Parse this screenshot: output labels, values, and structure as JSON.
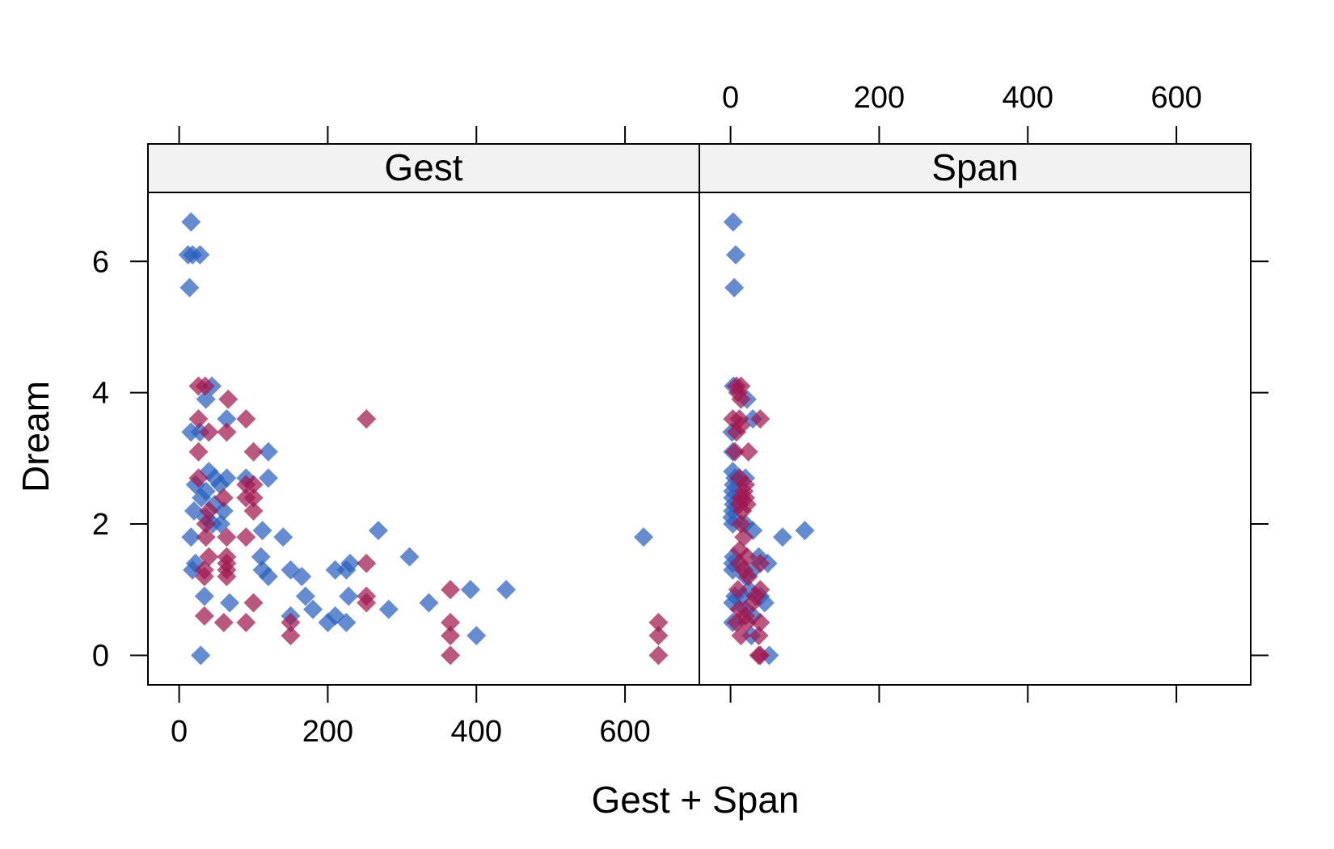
{
  "chart_data": {
    "type": "scatter",
    "xlabel": "Gest + Span",
    "ylabel": "Dream",
    "xlim": [
      -42,
      700
    ],
    "ylim": [
      -0.45,
      7.05
    ],
    "x_ticks": [
      0,
      200,
      400,
      600
    ],
    "y_ticks": [
      0,
      2,
      4,
      6
    ],
    "grid": false,
    "marker": "diamond",
    "colors": {
      "group_a": "#2a5fbf",
      "group_b": "#a0174f",
      "strip_bg": "#f2f2f2",
      "frame": "#000000"
    },
    "panels": [
      {
        "strip_label": "Gest",
        "series": [
          {
            "color_key": "group_a",
            "points": [
              [
                16,
                6.6
              ],
              [
                12,
                6.1
              ],
              [
                18,
                6.1
              ],
              [
                28,
                6.1
              ],
              [
                14,
                5.6
              ],
              [
                44,
                4.1
              ],
              [
                36,
                3.9
              ],
              [
                64,
                3.6
              ],
              [
                16,
                3.4
              ],
              [
                28,
                3.4
              ],
              [
                120,
                3.1
              ],
              [
                22,
                2.6
              ],
              [
                36,
                2.5
              ],
              [
                40,
                2.8
              ],
              [
                48,
                2.7
              ],
              [
                55,
                2.6
              ],
              [
                64,
                2.7
              ],
              [
                90,
                2.7
              ],
              [
                120,
                2.7
              ],
              [
                30,
                2.4
              ],
              [
                48,
                2.3
              ],
              [
                60,
                2.2
              ],
              [
                20,
                2.2
              ],
              [
                45,
                2.0
              ],
              [
                56,
                2.0
              ],
              [
                36,
                2.1
              ],
              [
                112,
                1.9
              ],
              [
                268,
                1.9
              ],
              [
                16,
                1.8
              ],
              [
                140,
                1.8
              ],
              [
                625,
                1.8
              ],
              [
                310,
                1.5
              ],
              [
                22,
                1.4
              ],
              [
                110,
                1.5
              ],
              [
                230,
                1.4
              ],
              [
                18,
                1.3
              ],
              [
                112,
                1.3
              ],
              [
                150,
                1.3
              ],
              [
                210,
                1.3
              ],
              [
                225,
                1.3
              ],
              [
                120,
                1.2
              ],
              [
                165,
                1.2
              ],
              [
                170,
                0.9
              ],
              [
                228,
                0.9
              ],
              [
                34,
                0.9
              ],
              [
                68,
                0.8
              ],
              [
                180,
                0.7
              ],
              [
                282,
                0.7
              ],
              [
                336,
                0.8
              ],
              [
                392,
                1.0
              ],
              [
                440,
                1.0
              ],
              [
                200,
                0.5
              ],
              [
                210,
                0.6
              ],
              [
                225,
                0.5
              ],
              [
                150,
                0.6
              ],
              [
                400,
                0.3
              ],
              [
                29,
                0.0
              ]
            ]
          },
          {
            "color_key": "group_b",
            "points": [
              [
                26,
                4.1
              ],
              [
                35,
                4.1
              ],
              [
                66,
                3.9
              ],
              [
                26,
                3.6
              ],
              [
                90,
                3.6
              ],
              [
                252,
                3.6
              ],
              [
                40,
                3.4
              ],
              [
                64,
                3.4
              ],
              [
                26,
                3.1
              ],
              [
                100,
                3.1
              ],
              [
                26,
                2.7
              ],
              [
                90,
                2.6
              ],
              [
                100,
                2.6
              ],
              [
                100,
                2.4
              ],
              [
                60,
                2.4
              ],
              [
                90,
                2.4
              ],
              [
                40,
                2.2
              ],
              [
                100,
                2.2
              ],
              [
                36,
                2.0
              ],
              [
                36,
                1.8
              ],
              [
                64,
                1.8
              ],
              [
                90,
                1.8
              ],
              [
                64,
                1.5
              ],
              [
                40,
                1.5
              ],
              [
                64,
                1.4
              ],
              [
                34,
                1.3
              ],
              [
                64,
                1.3
              ],
              [
                34,
                1.2
              ],
              [
                64,
                1.2
              ],
              [
                252,
                1.4
              ],
              [
                365,
                1.0
              ],
              [
                252,
                0.9
              ],
              [
                252,
                0.8
              ],
              [
                100,
                0.8
              ],
              [
                34,
                0.6
              ],
              [
                60,
                0.5
              ],
              [
                90,
                0.5
              ],
              [
                150,
                0.5
              ],
              [
                150,
                0.3
              ],
              [
                365,
                0.5
              ],
              [
                365,
                0.3
              ],
              [
                645,
                0.5
              ],
              [
                645,
                0.3
              ],
              [
                645,
                0.0
              ],
              [
                365,
                0.0
              ]
            ]
          }
        ]
      },
      {
        "strip_label": "Span",
        "series": [
          {
            "color_key": "group_a",
            "points": [
              [
                3.5,
                6.6
              ],
              [
                7,
                6.1
              ],
              [
                5,
                5.6
              ],
              [
                4,
                4.1
              ],
              [
                22,
                3.9
              ],
              [
                30,
                3.6
              ],
              [
                2,
                3.4
              ],
              [
                3,
                3.1
              ],
              [
                3,
                2.8
              ],
              [
                6,
                2.7
              ],
              [
                20,
                2.7
              ],
              [
                4,
                2.6
              ],
              [
                3,
                2.5
              ],
              [
                3,
                2.4
              ],
              [
                4,
                2.3
              ],
              [
                3,
                2.2
              ],
              [
                2,
                2.1
              ],
              [
                3,
                2.0
              ],
              [
                20,
                2.0
              ],
              [
                30,
                1.9
              ],
              [
                100,
                1.9
              ],
              [
                70,
                1.8
              ],
              [
                4,
                1.5
              ],
              [
                38,
                1.5
              ],
              [
                50,
                1.4
              ],
              [
                3,
                1.4
              ],
              [
                3,
                1.3
              ],
              [
                30,
                1.3
              ],
              [
                20,
                1.2
              ],
              [
                6,
                0.9
              ],
              [
                25,
                1.0
              ],
              [
                16,
                0.9
              ],
              [
                40,
                0.9
              ],
              [
                3,
                0.8
              ],
              [
                46,
                0.8
              ],
              [
                20,
                0.7
              ],
              [
                3,
                0.5
              ],
              [
                30,
                0.6
              ],
              [
                28,
                0.3
              ],
              [
                52,
                0.0
              ]
            ]
          },
          {
            "color_key": "group_b",
            "points": [
              [
                8,
                4.1
              ],
              [
                14,
                4.1
              ],
              [
                10,
                4.0
              ],
              [
                14,
                3.9
              ],
              [
                3,
                3.6
              ],
              [
                12,
                3.6
              ],
              [
                40,
                3.6
              ],
              [
                8,
                3.4
              ],
              [
                14,
                3.5
              ],
              [
                6,
                3.1
              ],
              [
                24,
                3.1
              ],
              [
                12,
                2.7
              ],
              [
                20,
                2.6
              ],
              [
                18,
                2.5
              ],
              [
                14,
                2.4
              ],
              [
                20,
                2.4
              ],
              [
                12,
                2.3
              ],
              [
                22,
                2.3
              ],
              [
                16,
                2.2
              ],
              [
                14,
                2.0
              ],
              [
                18,
                1.8
              ],
              [
                12,
                1.6
              ],
              [
                22,
                1.5
              ],
              [
                12,
                1.4
              ],
              [
                18,
                1.3
              ],
              [
                40,
                1.4
              ],
              [
                24,
                1.2
              ],
              [
                10,
                1.0
              ],
              [
                40,
                1.0
              ],
              [
                34,
                0.9
              ],
              [
                30,
                0.8
              ],
              [
                12,
                0.7
              ],
              [
                20,
                0.6
              ],
              [
                8,
                0.5
              ],
              [
                22,
                0.5
              ],
              [
                40,
                0.5
              ],
              [
                14,
                0.3
              ],
              [
                38,
                0.3
              ],
              [
                40,
                0.0
              ],
              [
                38,
                0.0
              ]
            ]
          }
        ]
      }
    ]
  }
}
